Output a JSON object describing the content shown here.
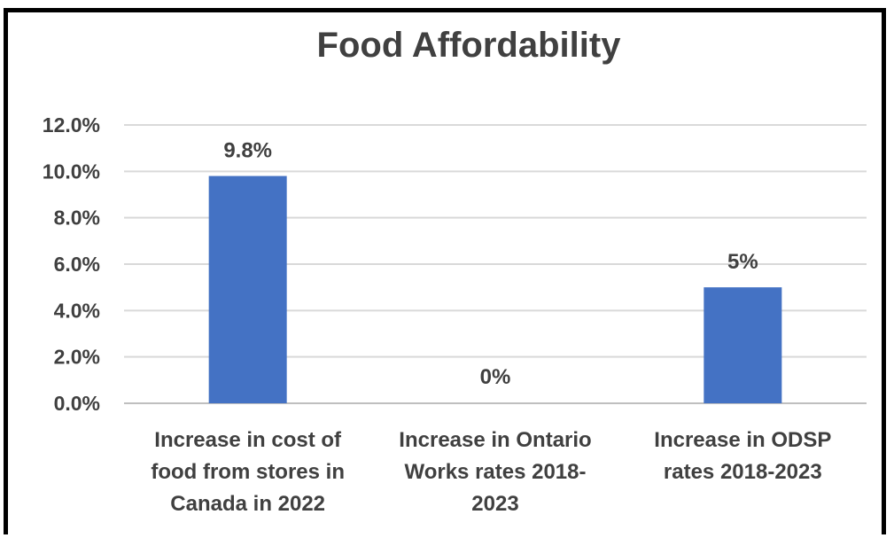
{
  "chart_data": {
    "type": "bar",
    "title": "Food Affordability",
    "categories": [
      [
        "Increase in cost of",
        "food from stores in",
        "Canada in 2022"
      ],
      [
        "Increase in Ontario",
        "Works rates 2018-",
        "2023"
      ],
      [
        "Increase in ODSP",
        "rates 2018-2023"
      ]
    ],
    "values": [
      9.8,
      0,
      5
    ],
    "data_labels": [
      "9.8%",
      "0%",
      "5%"
    ],
    "yticks": [
      "0.0%",
      "2.0%",
      "4.0%",
      "6.0%",
      "8.0%",
      "10.0%",
      "12.0%"
    ],
    "ylim": [
      0,
      12
    ],
    "grid": true,
    "legend": "none",
    "bar_color": "#4472C4",
    "grid_color": "#D9D9D9",
    "text_color": "#404040"
  }
}
